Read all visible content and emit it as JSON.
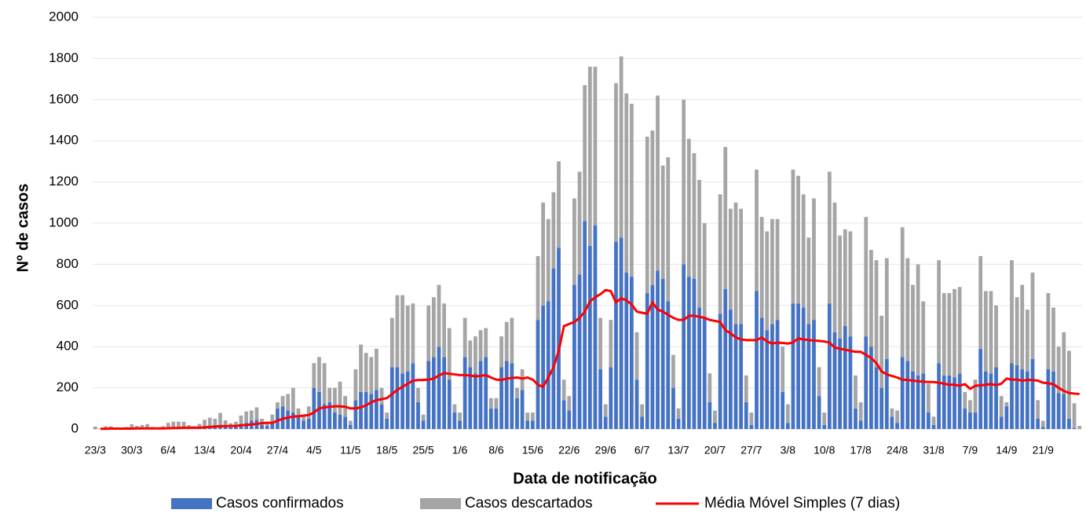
{
  "chart_data": {
    "type": "bar",
    "stacked": true,
    "x_label": "Data de notificação",
    "y_label": "Nº de casos",
    "ylim": [
      0,
      2000
    ],
    "yticks": [
      0,
      200,
      400,
      600,
      800,
      1000,
      1200,
      1400,
      1600,
      1800,
      2000
    ],
    "grid": true,
    "legend": "bottom",
    "categories": [
      "23/3",
      null,
      null,
      null,
      null,
      null,
      null,
      "30/3",
      null,
      null,
      null,
      null,
      null,
      null,
      "6/4",
      null,
      null,
      null,
      null,
      null,
      null,
      "13/4",
      null,
      null,
      null,
      null,
      null,
      null,
      "20/4",
      null,
      null,
      null,
      null,
      null,
      null,
      "27/4",
      null,
      null,
      null,
      null,
      null,
      null,
      "4/5",
      null,
      null,
      null,
      null,
      null,
      null,
      "11/5",
      null,
      null,
      null,
      null,
      null,
      null,
      "18/5",
      null,
      null,
      null,
      null,
      null,
      null,
      "25/5",
      null,
      null,
      null,
      null,
      null,
      null,
      "1/6",
      null,
      null,
      null,
      null,
      null,
      null,
      "8/6",
      null,
      null,
      null,
      null,
      null,
      null,
      "15/6",
      null,
      null,
      null,
      null,
      null,
      null,
      "22/6",
      null,
      null,
      null,
      null,
      null,
      null,
      "29/6",
      null,
      null,
      null,
      null,
      null,
      null,
      "6/7",
      null,
      null,
      null,
      null,
      null,
      null,
      "13/7",
      null,
      null,
      null,
      null,
      null,
      null,
      "20/7",
      null,
      null,
      null,
      null,
      null,
      null,
      "27/7",
      null,
      null,
      null,
      null,
      null,
      null,
      "3/8",
      null,
      null,
      null,
      null,
      null,
      null,
      "10/8",
      null,
      null,
      null,
      null,
      null,
      null,
      "17/8",
      null,
      null,
      null,
      null,
      null,
      null,
      "24/8",
      null,
      null,
      null,
      null,
      null,
      null,
      "31/8",
      null,
      null,
      null,
      null,
      null,
      null,
      "7/9",
      null,
      null,
      null,
      null,
      null,
      null,
      "14/9",
      null,
      null,
      null,
      null,
      null,
      null,
      "21/9",
      null,
      null,
      null,
      null,
      null,
      null,
      null
    ],
    "series": [
      {
        "name": "Casos confirmados",
        "type": "bar",
        "color": "#4472c4",
        "values": [
          2,
          0,
          3,
          1,
          0,
          1,
          2,
          3,
          5,
          4,
          6,
          2,
          1,
          3,
          5,
          8,
          6,
          10,
          4,
          3,
          5,
          10,
          15,
          20,
          18,
          12,
          8,
          10,
          25,
          30,
          40,
          45,
          20,
          15,
          30,
          100,
          110,
          90,
          80,
          60,
          40,
          50,
          200,
          180,
          120,
          130,
          80,
          70,
          60,
          20,
          140,
          180,
          180,
          170,
          190,
          120,
          50,
          300,
          300,
          270,
          280,
          320,
          130,
          40,
          330,
          350,
          400,
          350,
          240,
          80,
          40,
          350,
          300,
          270,
          330,
          350,
          100,
          100,
          300,
          330,
          320,
          150,
          190,
          40,
          40,
          530,
          600,
          620,
          780,
          880,
          140,
          90,
          700,
          750,
          1010,
          890,
          990,
          290,
          60,
          300,
          910,
          930,
          760,
          740,
          240,
          60,
          660,
          700,
          770,
          730,
          620,
          200,
          50,
          800,
          740,
          730,
          590,
          540,
          130,
          30,
          560,
          680,
          580,
          510,
          510,
          130,
          20,
          670,
          540,
          480,
          510,
          530,
          180,
          30,
          610,
          610,
          590,
          510,
          530,
          160,
          20,
          610,
          470,
          440,
          500,
          450,
          100,
          40,
          450,
          400,
          300,
          200,
          340,
          60,
          30,
          350,
          330,
          280,
          260,
          270,
          80,
          20,
          320,
          260,
          260,
          250,
          270,
          100,
          80,
          80,
          390,
          280,
          270,
          300,
          60,
          110,
          320,
          310,
          290,
          280,
          340,
          50,
          10,
          290,
          280,
          175,
          170,
          50,
          5,
          0
        ]
      },
      {
        "name": "Casos descartados",
        "type": "bar",
        "color": "#a5a5a5",
        "values": [
          10,
          3,
          10,
          12,
          2,
          5,
          8,
          20,
          10,
          15,
          18,
          8,
          5,
          10,
          25,
          28,
          30,
          25,
          15,
          10,
          20,
          35,
          40,
          30,
          60,
          30,
          20,
          25,
          40,
          55,
          50,
          60,
          30,
          20,
          40,
          30,
          50,
          80,
          120,
          40,
          30,
          60,
          120,
          170,
          200,
          70,
          120,
          160,
          100,
          20,
          150,
          230,
          190,
          180,
          200,
          80,
          30,
          240,
          350,
          380,
          320,
          290,
          70,
          30,
          270,
          290,
          300,
          260,
          250,
          40,
          40,
          190,
          130,
          180,
          150,
          140,
          50,
          50,
          150,
          190,
          220,
          50,
          100,
          40,
          40,
          310,
          500,
          400,
          370,
          420,
          100,
          70,
          420,
          500,
          660,
          870,
          770,
          250,
          60,
          230,
          770,
          880,
          870,
          840,
          230,
          60,
          760,
          750,
          850,
          550,
          700,
          160,
          50,
          800,
          670,
          610,
          620,
          460,
          140,
          60,
          580,
          690,
          490,
          590,
          560,
          130,
          60,
          590,
          490,
          480,
          510,
          490,
          220,
          90,
          650,
          620,
          550,
          420,
          590,
          140,
          60,
          640,
          630,
          500,
          470,
          510,
          160,
          90,
          580,
          470,
          520,
          350,
          490,
          40,
          60,
          630,
          500,
          420,
          540,
          350,
          140,
          40,
          500,
          400,
          400,
          430,
          420,
          80,
          60,
          160,
          450,
          390,
          400,
          300,
          100,
          20,
          500,
          330,
          410,
          300,
          420,
          90,
          30,
          370,
          310,
          225,
          300,
          330,
          120,
          15
        ]
      },
      {
        "name": "Média Móvel Simples (7 dias)",
        "type": "line",
        "color": "#ff0000",
        "values": [
          null,
          1,
          1,
          2,
          2,
          2,
          2,
          2,
          3,
          3,
          3,
          3,
          3,
          3,
          4,
          5,
          5,
          6,
          6,
          6,
          6,
          8,
          10,
          12,
          14,
          14,
          15,
          15,
          18,
          20,
          22,
          25,
          28,
          30,
          30,
          40,
          50,
          55,
          60,
          62,
          65,
          68,
          80,
          100,
          105,
          108,
          110,
          110,
          108,
          100,
          100,
          105,
          115,
          130,
          140,
          145,
          150,
          170,
          190,
          205,
          220,
          235,
          238,
          238,
          240,
          245,
          260,
          272,
          268,
          265,
          262,
          262,
          260,
          255,
          258,
          262,
          250,
          240,
          238,
          245,
          248,
          250,
          245,
          250,
          240,
          215,
          205,
          250,
          300,
          380,
          500,
          510,
          520,
          540,
          570,
          620,
          640,
          655,
          675,
          670,
          615,
          635,
          625,
          605,
          570,
          565,
          560,
          615,
          580,
          570,
          555,
          540,
          530,
          530,
          550,
          550,
          545,
          540,
          530,
          525,
          520,
          480,
          465,
          445,
          435,
          432,
          432,
          432,
          445,
          425,
          415,
          420,
          418,
          415,
          420,
          440,
          435,
          432,
          430,
          428,
          425,
          420,
          395,
          390,
          385,
          380,
          375,
          375,
          360,
          345,
          320,
          280,
          265,
          258,
          250,
          240,
          238,
          235,
          232,
          230,
          228,
          228,
          225,
          220,
          215,
          215,
          210,
          218,
          195,
          210,
          212,
          215,
          218,
          213,
          220,
          245,
          240,
          240,
          235,
          238,
          238,
          235,
          225,
          222,
          218,
          200,
          185,
          175,
          172,
          170
        ]
      }
    ]
  }
}
